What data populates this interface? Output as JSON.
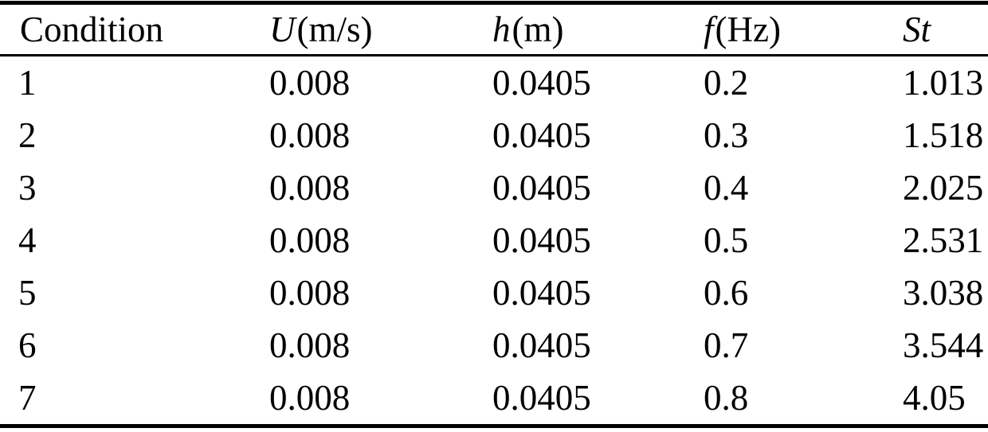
{
  "page": {
    "background_color": "#ffffff",
    "text_color": "#000000",
    "rule_color": "#000000"
  },
  "table": {
    "columns": [
      {
        "name": "condition",
        "symbol": "",
        "suffix": "Condition"
      },
      {
        "name": "velocity",
        "symbol": "U",
        "suffix": "(m/s)"
      },
      {
        "name": "depth",
        "symbol": "h",
        "suffix": "(m)"
      },
      {
        "name": "frequency",
        "symbol": "f",
        "suffix": "(Hz)"
      },
      {
        "name": "strouhal-number",
        "symbol": "St",
        "suffix": ""
      }
    ],
    "rows": [
      [
        "1",
        "0.008",
        "0.0405",
        "0.2",
        "1.013"
      ],
      [
        "2",
        "0.008",
        "0.0405",
        "0.3",
        "1.518"
      ],
      [
        "3",
        "0.008",
        "0.0405",
        "0.4",
        "2.025"
      ],
      [
        "4",
        "0.008",
        "0.0405",
        "0.5",
        "2.531"
      ],
      [
        "5",
        "0.008",
        "0.0405",
        "0.6",
        "3.038"
      ],
      [
        "6",
        "0.008",
        "0.0405",
        "0.7",
        "3.544"
      ],
      [
        "7",
        "0.008",
        "0.0405",
        "0.8",
        "4.05"
      ]
    ]
  },
  "chart_data": {
    "type": "table",
    "columns": [
      "Condition",
      "U(m/s)",
      "h(m)",
      "f(Hz)",
      "St"
    ],
    "rows": [
      [
        "1",
        "0.008",
        "0.0405",
        "0.2",
        "1.013"
      ],
      [
        "2",
        "0.008",
        "0.0405",
        "0.3",
        "1.518"
      ],
      [
        "3",
        "0.008",
        "0.0405",
        "0.4",
        "2.025"
      ],
      [
        "4",
        "0.008",
        "0.0405",
        "0.5",
        "2.531"
      ],
      [
        "5",
        "0.008",
        "0.0405",
        "0.6",
        "3.038"
      ],
      [
        "6",
        "0.008",
        "0.0405",
        "0.7",
        "3.544"
      ],
      [
        "7",
        "0.008",
        "0.0405",
        "0.8",
        "4.05"
      ]
    ]
  }
}
